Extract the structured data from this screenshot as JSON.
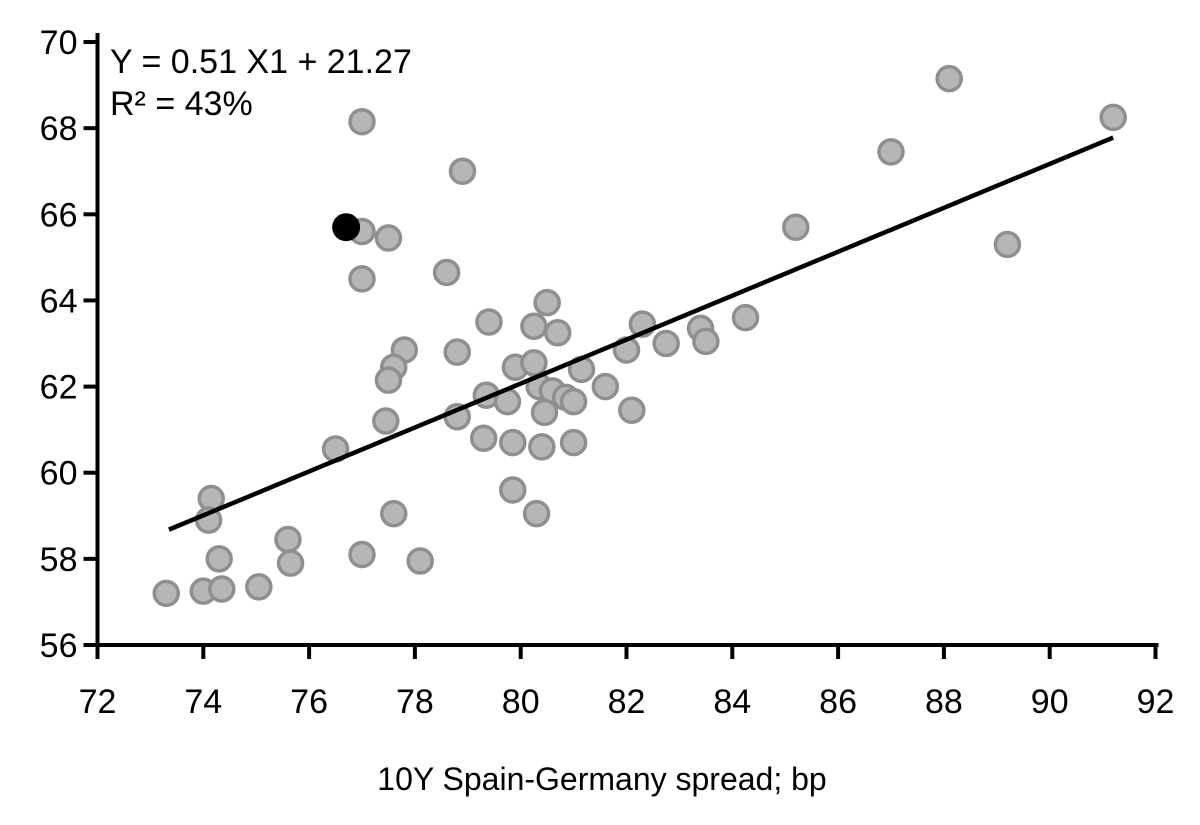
{
  "chart_data": {
    "type": "scatter",
    "title": "",
    "xlabel": "10Y Spain-Germany spread; bp",
    "ylabel": "",
    "xlim": [
      72,
      92
    ],
    "ylim": [
      56,
      70
    ],
    "x_ticks": [
      72,
      74,
      76,
      78,
      80,
      82,
      84,
      86,
      88,
      90,
      92
    ],
    "y_ticks": [
      56,
      58,
      60,
      62,
      64,
      66,
      68,
      70
    ],
    "grid": false,
    "legend": "none",
    "annotation": {
      "line1": "Y = 0.51 X1 + 21.27",
      "line2": "R² = 43%"
    },
    "regression": {
      "slope": 0.51,
      "intercept": 21.27,
      "r_squared_pct": 43,
      "x_start": 73.35,
      "x_end": 91.2,
      "line_color": "#000000"
    },
    "series": [
      {
        "name": "observations",
        "marker": "circle",
        "fill_color": "#b6b6b6",
        "stroke_color": "#8f8f8f",
        "points": [
          [
            77.0,
            68.15
          ],
          [
            78.9,
            67.0
          ],
          [
            77.0,
            65.6
          ],
          [
            77.5,
            65.45
          ],
          [
            77.0,
            64.5
          ],
          [
            78.6,
            64.65
          ],
          [
            88.1,
            69.15
          ],
          [
            91.2,
            68.25
          ],
          [
            87.0,
            67.45
          ],
          [
            85.2,
            65.7
          ],
          [
            89.2,
            65.3
          ],
          [
            77.8,
            62.85
          ],
          [
            77.6,
            62.45
          ],
          [
            77.5,
            62.15
          ],
          [
            78.8,
            62.8
          ],
          [
            79.4,
            63.5
          ],
          [
            80.5,
            63.95
          ],
          [
            80.25,
            63.4
          ],
          [
            80.7,
            63.25
          ],
          [
            82.3,
            63.45
          ],
          [
            82.0,
            62.85
          ],
          [
            82.75,
            63.0
          ],
          [
            83.4,
            63.35
          ],
          [
            83.5,
            63.05
          ],
          [
            84.25,
            63.6
          ],
          [
            79.9,
            62.45
          ],
          [
            80.25,
            62.55
          ],
          [
            81.15,
            62.4
          ],
          [
            80.35,
            62.0
          ],
          [
            80.6,
            61.9
          ],
          [
            80.85,
            61.75
          ],
          [
            81.0,
            61.65
          ],
          [
            80.45,
            61.4
          ],
          [
            81.6,
            62.0
          ],
          [
            79.35,
            61.8
          ],
          [
            79.75,
            61.65
          ],
          [
            82.1,
            61.45
          ],
          [
            77.45,
            61.2
          ],
          [
            78.8,
            61.3
          ],
          [
            79.3,
            60.8
          ],
          [
            79.85,
            60.7
          ],
          [
            80.4,
            60.6
          ],
          [
            81.0,
            60.7
          ],
          [
            76.5,
            60.55
          ],
          [
            79.85,
            59.6
          ],
          [
            80.3,
            59.05
          ],
          [
            77.6,
            59.05
          ],
          [
            74.15,
            59.4
          ],
          [
            74.1,
            58.9
          ],
          [
            74.3,
            58.0
          ],
          [
            75.6,
            58.45
          ],
          [
            75.65,
            57.9
          ],
          [
            73.3,
            57.2
          ],
          [
            74.0,
            57.25
          ],
          [
            74.35,
            57.3
          ],
          [
            75.05,
            57.35
          ],
          [
            77.0,
            58.1
          ],
          [
            78.1,
            57.95
          ]
        ]
      },
      {
        "name": "highlighted-observation",
        "marker": "circle",
        "fill_color": "#000000",
        "stroke_color": "#000000",
        "points": [
          [
            76.7,
            65.7
          ]
        ]
      }
    ],
    "axis_color": "#000000",
    "background": "#ffffff"
  }
}
